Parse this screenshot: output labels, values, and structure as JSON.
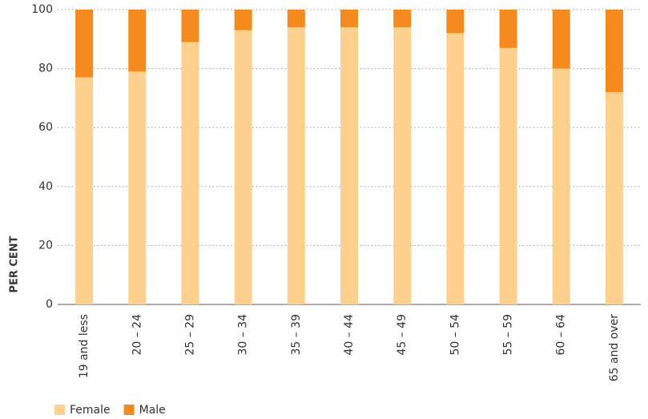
{
  "chart_data": {
    "type": "stacked_bar",
    "ylabel": "PER CENT",
    "categories": [
      "19 and less",
      "20 – 24",
      "25 – 29",
      "30 – 34",
      "35 – 39",
      "40 – 44",
      "45 – 49",
      "50 – 54",
      "55 – 59",
      "60 – 64",
      "65 and over"
    ],
    "series": [
      {
        "name": "Female",
        "color": "#fdd08e",
        "values": [
          77,
          79,
          89,
          93,
          94,
          94,
          94,
          92,
          87,
          80,
          72
        ]
      },
      {
        "name": "Male",
        "color": "#f58a1f",
        "values": [
          23,
          21,
          11,
          7,
          6,
          6,
          6,
          8,
          13,
          20,
          28
        ]
      }
    ],
    "ylim": [
      0,
      100
    ],
    "yticks": [
      0,
      20,
      40,
      60,
      80,
      100
    ],
    "grid": true
  }
}
